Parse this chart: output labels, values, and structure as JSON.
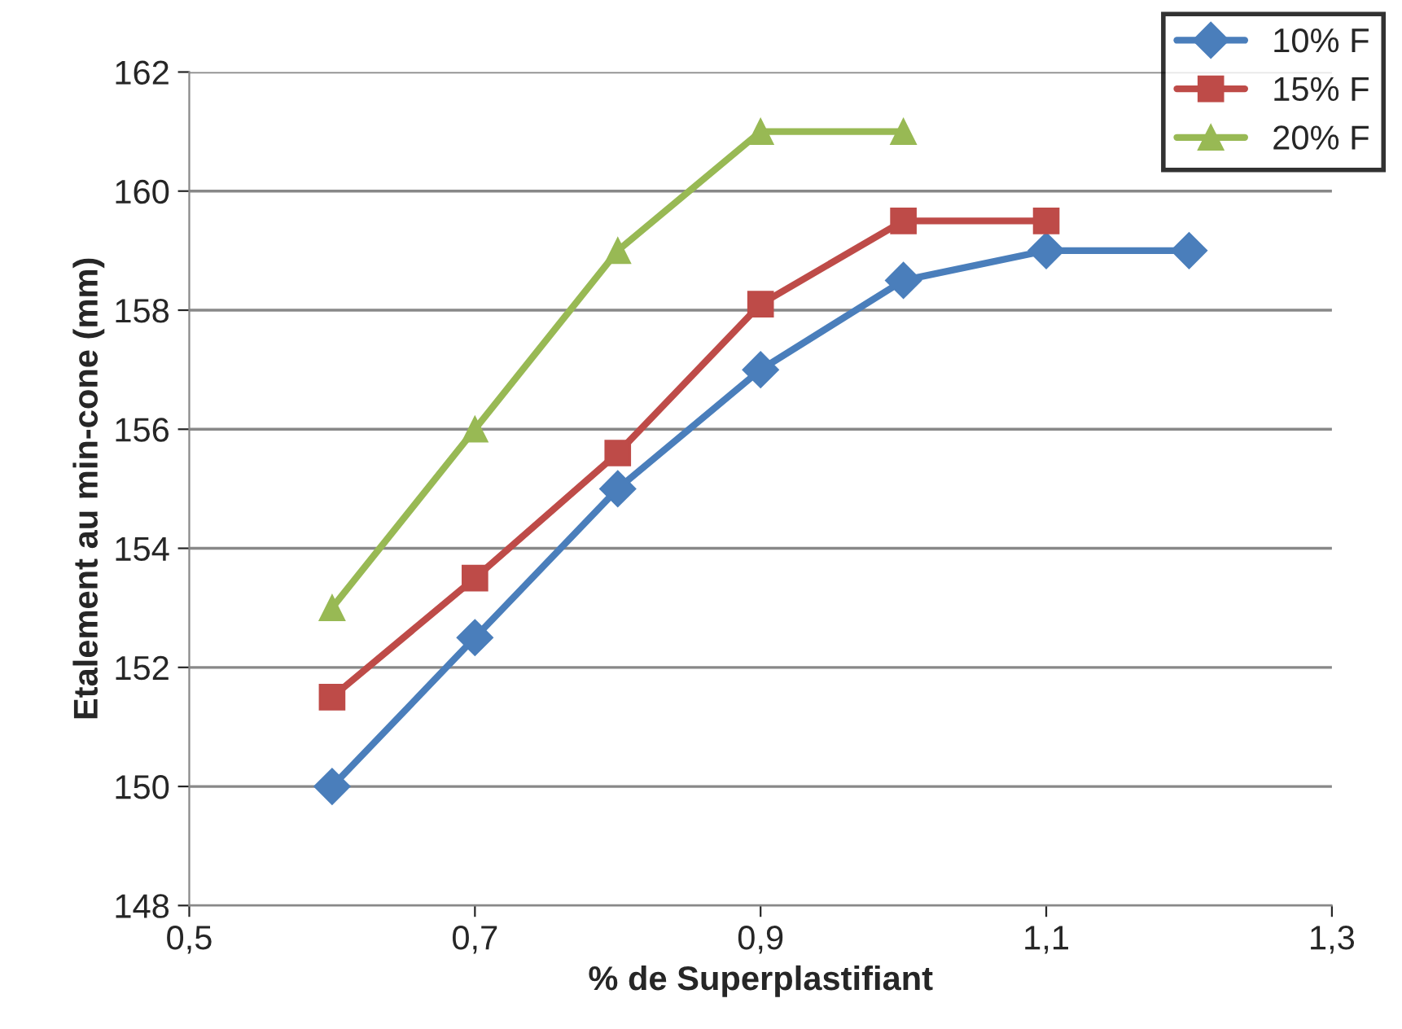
{
  "chart_data": {
    "type": "line",
    "xlabel": "% de Superplastifiant",
    "ylabel": "Etalement au min-cone (mm)",
    "xlim": [
      0.5,
      1.3
    ],
    "xticks": [
      {
        "value": 0.5,
        "label": "0,5"
      },
      {
        "value": 0.7,
        "label": "0,7"
      },
      {
        "value": 0.9,
        "label": "0,9"
      },
      {
        "value": 1.1,
        "label": "1,1"
      },
      {
        "value": 1.3,
        "label": "1,3"
      }
    ],
    "ylim": [
      148,
      162
    ],
    "yticks": [
      148,
      150,
      152,
      154,
      156,
      158,
      160,
      162
    ],
    "grid": "y",
    "legend": "top right",
    "series": [
      {
        "name": "10% F",
        "color": "#4a7ebb",
        "marker": "diamond",
        "x": [
          0.6,
          0.7,
          0.8,
          0.9,
          1.0,
          1.1,
          1.2
        ],
        "values": [
          150,
          152.5,
          155,
          157,
          158.5,
          159,
          159
        ]
      },
      {
        "name": "15% F",
        "color": "#be4b48",
        "marker": "square",
        "x": [
          0.6,
          0.7,
          0.8,
          0.9,
          1.0,
          1.1
        ],
        "values": [
          151.5,
          153.5,
          155.6,
          158.1,
          159.5,
          159.5
        ]
      },
      {
        "name": "20% F",
        "color": "#98b954",
        "marker": "triangle",
        "x": [
          0.6,
          0.7,
          0.8,
          0.9,
          1.0
        ],
        "values": [
          153,
          156,
          159,
          161,
          161
        ]
      }
    ]
  }
}
